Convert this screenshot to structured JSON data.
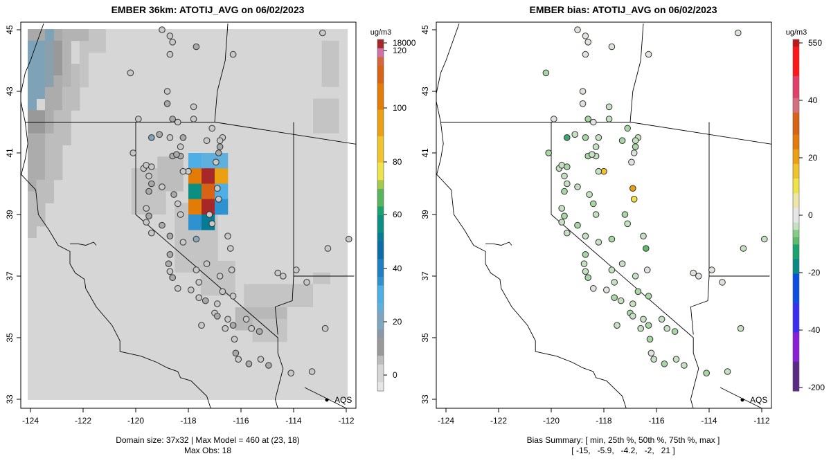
{
  "left_panel": {
    "title": "EMBER 36km: ATOTIJ_AVG on 06/02/2023",
    "colorbar_unit": "ug/m3",
    "colorbar_ticks": [
      "18000",
      "120",
      "100",
      "80",
      "60",
      "40",
      "20",
      "0"
    ],
    "caption_line1": "Domain size: 37x32 | Max Model = 460 at (23, 18)",
    "caption_line2": "Max Obs: 18",
    "aqs_label": "AQS"
  },
  "right_panel": {
    "title": "EMBER bias: ATOTIJ_AVG on 06/02/2023",
    "colorbar_unit": "ug/m3",
    "colorbar_ticks": [
      "550",
      "40",
      "20",
      "0",
      "-20",
      "-40",
      "-200"
    ],
    "caption_line1": "Bias Summary: [ min, 25th %, 50th %, 75th %, max ]",
    "caption_line2": "[ -15,   -5.9,   -4.2,   -2,   21 ]",
    "aqs_label": "AQS"
  },
  "axes": {
    "x_ticks": [
      "-124",
      "-122",
      "-120",
      "-118",
      "-116",
      "-114",
      "-112"
    ],
    "y_ticks": [
      "45",
      "43",
      "41",
      "39",
      "37",
      "35",
      "33"
    ],
    "xlim": [
      -124.3,
      -111.7
    ],
    "ylim": [
      32.7,
      45.2
    ]
  },
  "chart_data": [
    {
      "type": "heatmap",
      "title": "EMBER 36km: ATOTIJ_AVG on 06/02/2023",
      "units": "ug/m3",
      "domain_size": "37x32",
      "max_model": 460,
      "max_model_cell": [
        23,
        18
      ],
      "max_obs": 18,
      "hotspot_cells": [
        {
          "lon": -117.75,
          "lat": 40.75,
          "value": 30
        },
        {
          "lon": -117.25,
          "lat": 40.75,
          "value": 28
        },
        {
          "lon": -116.75,
          "lat": 40.75,
          "value": 25
        },
        {
          "lon": -117.75,
          "lat": 40.25,
          "value": 100
        },
        {
          "lon": -117.25,
          "lat": 40.25,
          "value": 460
        },
        {
          "lon": -116.75,
          "lat": 40.25,
          "value": 90
        },
        {
          "lon": -117.75,
          "lat": 39.75,
          "value": 55
        },
        {
          "lon": -117.25,
          "lat": 39.75,
          "value": 110
        },
        {
          "lon": -116.75,
          "lat": 39.75,
          "value": 30
        },
        {
          "lon": -117.75,
          "lat": 39.25,
          "value": 100
        },
        {
          "lon": -117.25,
          "lat": 39.25,
          "value": 200
        },
        {
          "lon": -116.75,
          "lat": 39.25,
          "value": 35
        },
        {
          "lon": -117.75,
          "lat": 38.75,
          "value": 38
        },
        {
          "lon": -117.25,
          "lat": 38.75,
          "value": 50
        }
      ],
      "colorbar_ticks": [
        0,
        20,
        40,
        60,
        80,
        100,
        120,
        18000
      ]
    },
    {
      "type": "scatter",
      "title": "EMBER bias: ATOTIJ_AVG on 06/02/2023",
      "units": "ug/m3",
      "bias_summary": {
        "min": -15,
        "p25": -5.9,
        "median": -4.2,
        "p75": -2,
        "max": 21
      },
      "notable_sites": [
        {
          "lon": -118.2,
          "lat": 40.4,
          "bias": 14
        },
        {
          "lon": -116.9,
          "lat": 39.85,
          "bias": 21
        },
        {
          "lon": -116.85,
          "lat": 39.5,
          "bias": 12
        }
      ],
      "colorbar_ticks": [
        -200,
        -40,
        -20,
        0,
        20,
        40,
        550
      ]
    }
  ]
}
